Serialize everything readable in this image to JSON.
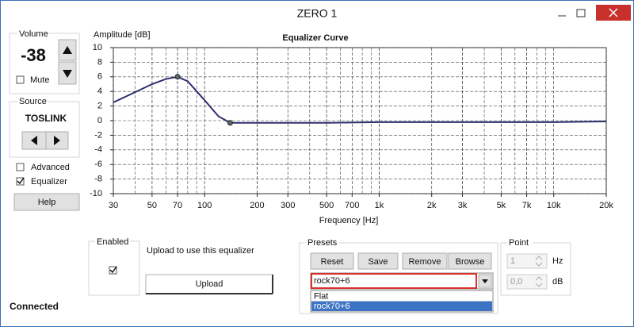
{
  "window": {
    "title": "ZERO 1"
  },
  "volume": {
    "label": "Volume",
    "value": "-38",
    "mute": "Mute",
    "mute_checked": false
  },
  "source": {
    "label": "Source",
    "value": "TOSLINK"
  },
  "options": {
    "advanced": "Advanced",
    "advanced_checked": false,
    "equalizer": "Equalizer",
    "equalizer_checked": true
  },
  "help": "Help",
  "chart_data": {
    "type": "line",
    "title": "Equalizer Curve",
    "y_label": "Amplitude [dB]",
    "x_label": "Frequency [Hz]",
    "log_x": true,
    "grid": true,
    "xlim": [
      30,
      20000
    ],
    "ylim": [
      -10,
      10
    ],
    "xticks": [
      30,
      50,
      70,
      100,
      200,
      300,
      500,
      700,
      {
        "value": 1000,
        "label": "1k"
      },
      {
        "value": 2000,
        "label": "2k"
      },
      {
        "value": 3000,
        "label": "3k"
      },
      {
        "value": 5000,
        "label": "5k"
      },
      {
        "value": 7000,
        "label": "7k"
      },
      {
        "value": 10000,
        "label": "10k"
      },
      {
        "value": 20000,
        "label": "20k"
      }
    ],
    "yticks": [
      10,
      8,
      6,
      4,
      2,
      0,
      -2,
      -4,
      -6,
      -8,
      -10
    ],
    "x": [
      30,
      40,
      50,
      60,
      70,
      80,
      100,
      120,
      140,
      200,
      500,
      1000,
      2000,
      5000,
      10000,
      20000
    ],
    "series": [
      {
        "name": "Equalizer Curve",
        "color": "#2e2e6e",
        "values": [
          2.5,
          3.9,
          5.0,
          5.7,
          6.0,
          5.4,
          2.8,
          0.6,
          -0.3,
          -0.3,
          -0.3,
          -0.2,
          -0.2,
          -0.2,
          -0.2,
          -0.1
        ]
      }
    ],
    "control_points": {
      "x": [
        70,
        140
      ],
      "values": [
        6,
        -0.3
      ]
    }
  },
  "enabled": {
    "label": "Enabled",
    "checked": true
  },
  "upload": {
    "text": "Upload to use this equalizer",
    "button": "Upload"
  },
  "presets": {
    "label": "Presets",
    "buttons": [
      "Reset",
      "Save",
      "Remove",
      "Browse"
    ],
    "selected": "rock70+6",
    "options": [
      "Flat",
      "rock70+6"
    ]
  },
  "point": {
    "label": "Point",
    "freq": "1",
    "freq_unit": "Hz",
    "gain": "0,0",
    "gain_unit": "dB"
  },
  "status": "Connected"
}
